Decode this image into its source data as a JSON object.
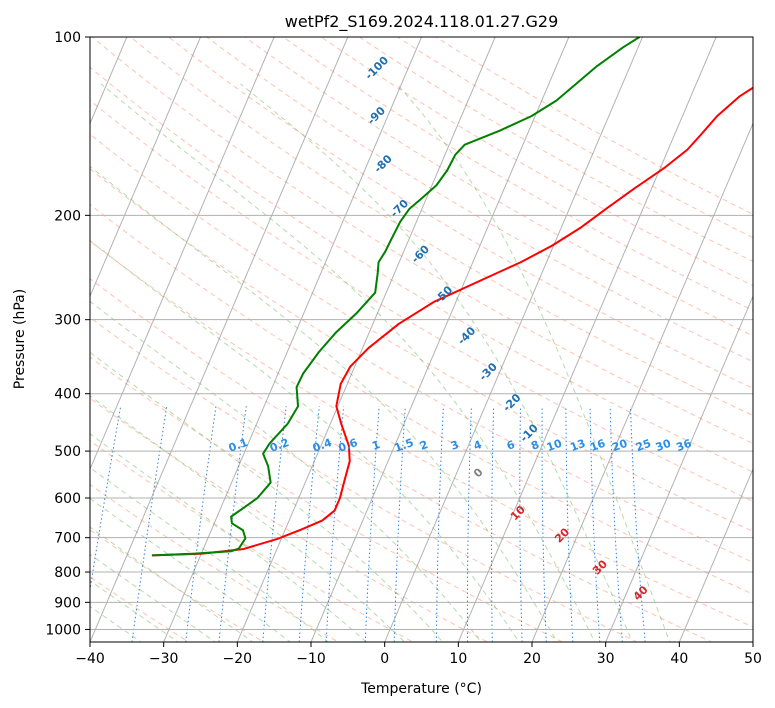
{
  "chart_data": {
    "type": "line",
    "title": "wetPf2_S169.2024.118.01.27.G29",
    "xlabel": "Temperature (°C)",
    "ylabel": "Pressure (hPa)",
    "xlim": [
      -40,
      50
    ],
    "ylim": [
      1050,
      100
    ],
    "y_scale": "log",
    "grid": true,
    "skew": "skew-T log-P",
    "x_ticks": [
      -40,
      -30,
      -20,
      -10,
      0,
      10,
      20,
      30,
      40,
      50
    ],
    "x_tick_labels": [
      "−40",
      "−30",
      "−20",
      "−10",
      "0",
      "10",
      "20",
      "30",
      "40",
      "50"
    ],
    "y_ticks": [
      100,
      200,
      300,
      400,
      500,
      600,
      700,
      800,
      900,
      1000
    ],
    "y_tick_labels": [
      "100",
      "200",
      "300",
      "400",
      "500",
      "600",
      "700",
      "800",
      "900",
      "1000"
    ],
    "series": [
      {
        "color": "#ff0000",
        "points": [
          {
            "x": -36.6,
            "y": 750
          },
          {
            "x": -30.0,
            "y": 745
          },
          {
            "x": -24.6,
            "y": 732
          },
          {
            "x": -20.5,
            "y": 703
          },
          {
            "x": -17.8,
            "y": 678
          },
          {
            "x": -15.5,
            "y": 655
          },
          {
            "x": -14.4,
            "y": 630
          },
          {
            "x": -14.4,
            "y": 600
          },
          {
            "x": -14.8,
            "y": 560
          },
          {
            "x": -15.2,
            "y": 520
          },
          {
            "x": -16.2,
            "y": 490
          },
          {
            "x": -18.5,
            "y": 450
          },
          {
            "x": -20.2,
            "y": 420
          },
          {
            "x": -20.9,
            "y": 385
          },
          {
            "x": -20.6,
            "y": 360
          },
          {
            "x": -19.2,
            "y": 335
          },
          {
            "x": -16.5,
            "y": 305
          },
          {
            "x": -13.0,
            "y": 280
          },
          {
            "x": -7.5,
            "y": 256
          },
          {
            "x": -3.5,
            "y": 240
          },
          {
            "x": -0.2,
            "y": 225
          },
          {
            "x": 2.6,
            "y": 210
          },
          {
            "x": 5.0,
            "y": 195
          },
          {
            "x": 7.7,
            "y": 180
          },
          {
            "x": 10.6,
            "y": 166
          },
          {
            "x": 12.6,
            "y": 155
          },
          {
            "x": 13.6,
            "y": 146
          },
          {
            "x": 14.7,
            "y": 136
          },
          {
            "x": 16.6,
            "y": 126
          },
          {
            "x": 19.5,
            "y": 117
          },
          {
            "x": 21.9,
            "y": 109
          },
          {
            "x": 23.3,
            "y": 100
          }
        ]
      },
      {
        "color": "#008000",
        "points": [
          {
            "x": -36.6,
            "y": 750
          },
          {
            "x": -31.2,
            "y": 745
          },
          {
            "x": -26.1,
            "y": 738
          },
          {
            "x": -25.2,
            "y": 730
          },
          {
            "x": -24.9,
            "y": 702
          },
          {
            "x": -25.7,
            "y": 680
          },
          {
            "x": -27.6,
            "y": 662
          },
          {
            "x": -28.1,
            "y": 645
          },
          {
            "x": -27.0,
            "y": 625
          },
          {
            "x": -25.6,
            "y": 600
          },
          {
            "x": -24.7,
            "y": 565
          },
          {
            "x": -26.0,
            "y": 530
          },
          {
            "x": -27.4,
            "y": 505
          },
          {
            "x": -27.1,
            "y": 485
          },
          {
            "x": -25.8,
            "y": 450
          },
          {
            "x": -25.4,
            "y": 420
          },
          {
            "x": -26.7,
            "y": 390
          },
          {
            "x": -26.6,
            "y": 370
          },
          {
            "x": -25.7,
            "y": 340
          },
          {
            "x": -24.5,
            "y": 315
          },
          {
            "x": -22.8,
            "y": 292
          },
          {
            "x": -21.5,
            "y": 270
          },
          {
            "x": -22.3,
            "y": 250
          },
          {
            "x": -22.8,
            "y": 240
          },
          {
            "x": -22.5,
            "y": 230
          },
          {
            "x": -22.4,
            "y": 220
          },
          {
            "x": -22.2,
            "y": 205
          },
          {
            "x": -21.7,
            "y": 195
          },
          {
            "x": -20.6,
            "y": 187
          },
          {
            "x": -19.4,
            "y": 178
          },
          {
            "x": -18.8,
            "y": 168
          },
          {
            "x": -18.6,
            "y": 158
          },
          {
            "x": -17.9,
            "y": 152
          },
          {
            "x": -14.0,
            "y": 144
          },
          {
            "x": -10.5,
            "y": 136
          },
          {
            "x": -8.0,
            "y": 128
          },
          {
            "x": -6.3,
            "y": 120
          },
          {
            "x": -4.5,
            "y": 112
          },
          {
            "x": -2.0,
            "y": 104
          },
          {
            "x": -0.4,
            "y": 100
          }
        ]
      }
    ],
    "reference_lines": {
      "dry_adiabats_color": "#ff9070",
      "moist_adiabats_color": "#59b04a",
      "mixing_ratio_color": "#1f77d4",
      "isotherm_color": "#808080"
    },
    "annotations": {
      "moist_adiabat_labels": [
        {
          "text": "-100",
          "x": -34.2,
          "y": 113
        },
        {
          "text": "-90",
          "x": -31.5,
          "y": 136
        },
        {
          "text": "-80",
          "x": -27.8,
          "y": 164
        },
        {
          "text": "-70",
          "x": -23.0,
          "y": 195
        },
        {
          "text": "-60",
          "x": -17.5,
          "y": 233
        },
        {
          "text": "-50",
          "x": -12.0,
          "y": 273
        },
        {
          "text": "-40",
          "x": -6.5,
          "y": 320
        },
        {
          "text": "-30",
          "x": -1.5,
          "y": 368
        },
        {
          "text": "-20",
          "x": 3.5,
          "y": 415
        },
        {
          "text": "-10",
          "x": 7.6,
          "y": 467
        }
      ],
      "mixing_ratio_labels": [
        {
          "text": "0.1",
          "x": -31.2,
          "y": 490
        },
        {
          "text": "0.2",
          "x": -25.6,
          "y": 490
        },
        {
          "text": "0.4",
          "x": -19.8,
          "y": 490
        },
        {
          "text": "0.6",
          "x": -16.3,
          "y": 490
        },
        {
          "text": "1",
          "x": -12.5,
          "y": 490
        },
        {
          "text": "1.5",
          "x": -8.7,
          "y": 490
        },
        {
          "text": "2",
          "x": -6.0,
          "y": 490
        },
        {
          "text": "3",
          "x": -1.8,
          "y": 490
        },
        {
          "text": "4",
          "x": 1.3,
          "y": 490
        },
        {
          "text": "6",
          "x": 5.8,
          "y": 490
        },
        {
          "text": "8",
          "x": 9.1,
          "y": 490
        },
        {
          "text": "10",
          "x": 11.7,
          "y": 490
        },
        {
          "text": "13",
          "x": 14.9,
          "y": 490
        },
        {
          "text": "16",
          "x": 17.6,
          "y": 490
        },
        {
          "text": "20",
          "x": 20.6,
          "y": 490
        },
        {
          "text": "25",
          "x": 23.8,
          "y": 490
        },
        {
          "text": "30",
          "x": 26.5,
          "y": 490
        },
        {
          "text": "36",
          "x": 29.3,
          "y": 490
        }
      ],
      "temperature_labels": [
        {
          "text": "0",
          "x": 3.0,
          "y": 545
        },
        {
          "text": "10",
          "x": 10.7,
          "y": 637
        },
        {
          "text": "20",
          "x": 18.0,
          "y": 695
        },
        {
          "text": "30",
          "x": 25.0,
          "y": 787
        },
        {
          "text": "40",
          "x": 32.0,
          "y": 870
        }
      ]
    },
    "colors": {
      "moist_adiabat_label": "#1f6fb2",
      "mixing_ratio_label": "#2a8ee6",
      "temperature_label": "#d62728",
      "zero_label": "#808080"
    }
  }
}
